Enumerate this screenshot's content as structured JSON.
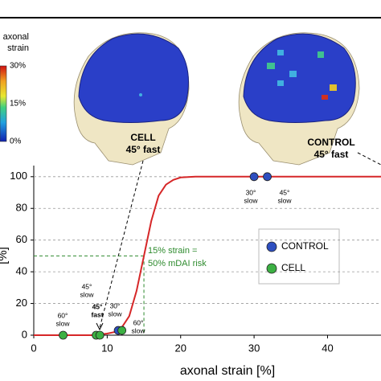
{
  "chart_data": {
    "type": "line",
    "xlabel": "axonal strain [%]",
    "ylabel": "[%]",
    "xlim": [
      0,
      47.5
    ],
    "ylim": [
      0,
      107
    ],
    "xticks": [
      0,
      10,
      20,
      30,
      40
    ],
    "yticks": [
      0,
      20,
      40,
      60,
      80,
      100
    ],
    "grid": true,
    "series": [
      {
        "type": "line",
        "color": "#d62728",
        "x": [
          0,
          8,
          10,
          11,
          12,
          13,
          14,
          15,
          16,
          17,
          18,
          19,
          20,
          22,
          47.5
        ],
        "values": [
          0,
          0,
          1,
          2,
          5,
          12,
          28,
          50,
          72,
          88,
          95,
          98,
          99.5,
          100,
          100
        ]
      },
      {
        "type": "scatter",
        "name": "CONTROL",
        "color": "#2e4fc0",
        "x": [
          11.5,
          30,
          31.8
        ],
        "values": [
          3,
          100,
          100
        ]
      },
      {
        "type": "scatter",
        "name": "CELL",
        "color": "#3cb043",
        "x": [
          4,
          8.5,
          9,
          12
        ],
        "values": [
          0,
          0,
          0,
          3
        ]
      }
    ],
    "legend": "right",
    "threshold": {
      "x": 15,
      "y": 50,
      "color": "#2e8b2e",
      "label": [
        "15% strain =",
        "50% mDAI risk"
      ]
    },
    "point_labels": [
      [
        "60°",
        "slow"
      ],
      [
        "45°",
        "slow"
      ],
      [
        "45°",
        "fast"
      ],
      [
        "30°",
        "slow"
      ],
      [
        "60°",
        "slow"
      ],
      [
        "30°",
        "slow"
      ],
      [
        "45°",
        "slow"
      ]
    ],
    "images": [
      {
        "label": [
          "CELL",
          "45° fast"
        ]
      },
      {
        "label": [
          "CONTROL",
          "45° fast"
        ]
      }
    ],
    "colorbar": {
      "title": [
        "axonal",
        "strain"
      ],
      "ticks": [
        {
          "value": 30,
          "label": "30%"
        },
        {
          "value": 15,
          "label": "15%"
        },
        {
          "value": 0,
          "label": "0%"
        }
      ]
    }
  }
}
